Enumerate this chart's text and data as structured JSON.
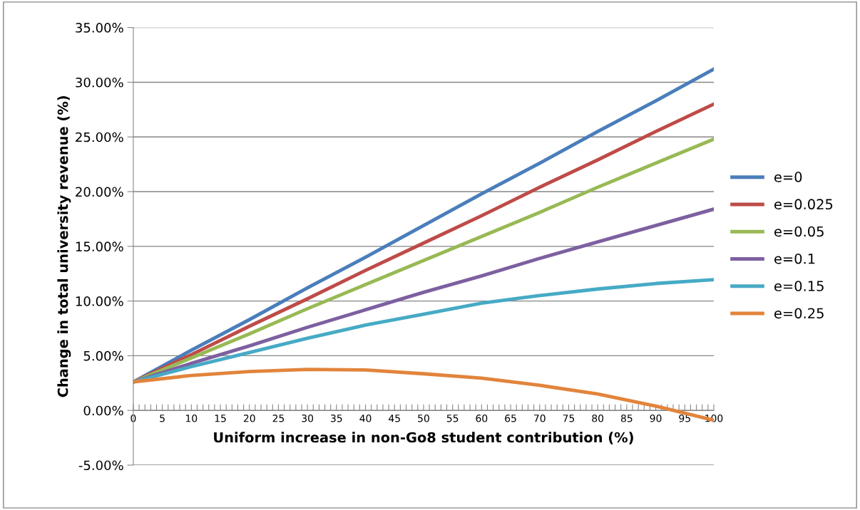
{
  "chart_data": {
    "type": "line",
    "xlabel": "Uniform increase in non-Go8 student contribution (%)",
    "ylabel": "Change in total university revenue (%)",
    "x": [
      0,
      10,
      20,
      30,
      40,
      50,
      60,
      70,
      80,
      90,
      100
    ],
    "xlim": [
      0,
      100
    ],
    "xticks": [
      0,
      {
        "value": 1,
        "label": null
      },
      {
        "value": 2,
        "label": null
      },
      {
        "value": 3,
        "label": null
      },
      {
        "value": 4,
        "label": null
      },
      5,
      {
        "value": 6,
        "label": null
      },
      {
        "value": 7,
        "label": null
      },
      {
        "value": 8,
        "label": null
      },
      {
        "value": 9,
        "label": null
      },
      10,
      {
        "value": 11,
        "label": null
      },
      {
        "value": 12,
        "label": null
      },
      {
        "value": 13,
        "label": null
      },
      {
        "value": 14,
        "label": null
      },
      15,
      {
        "value": 16,
        "label": null
      },
      {
        "value": 17,
        "label": null
      },
      {
        "value": 18,
        "label": null
      },
      {
        "value": 19,
        "label": null
      },
      20,
      {
        "value": 21,
        "label": null
      },
      {
        "value": 22,
        "label": null
      },
      {
        "value": 23,
        "label": null
      },
      {
        "value": 24,
        "label": null
      },
      25,
      {
        "value": 26,
        "label": null
      },
      {
        "value": 27,
        "label": null
      },
      {
        "value": 28,
        "label": null
      },
      {
        "value": 29,
        "label": null
      },
      30,
      {
        "value": 31,
        "label": null
      },
      {
        "value": 32,
        "label": null
      },
      {
        "value": 33,
        "label": null
      },
      {
        "value": 34,
        "label": null
      },
      35,
      {
        "value": 36,
        "label": null
      },
      {
        "value": 37,
        "label": null
      },
      {
        "value": 38,
        "label": null
      },
      {
        "value": 39,
        "label": null
      },
      40,
      {
        "value": 41,
        "label": null
      },
      {
        "value": 42,
        "label": null
      },
      {
        "value": 43,
        "label": null
      },
      {
        "value": 44,
        "label": null
      },
      45,
      {
        "value": 46,
        "label": null
      },
      {
        "value": 47,
        "label": null
      },
      {
        "value": 48,
        "label": null
      },
      {
        "value": 49,
        "label": null
      },
      50,
      {
        "value": 51,
        "label": null
      },
      {
        "value": 52,
        "label": null
      },
      {
        "value": 53,
        "label": null
      },
      {
        "value": 54,
        "label": null
      },
      55,
      {
        "value": 56,
        "label": null
      },
      {
        "value": 57,
        "label": null
      },
      {
        "value": 58,
        "label": null
      },
      {
        "value": 59,
        "label": null
      },
      60,
      {
        "value": 61,
        "label": null
      },
      {
        "value": 62,
        "label": null
      },
      {
        "value": 63,
        "label": null
      },
      {
        "value": 64,
        "label": null
      },
      65,
      {
        "value": 66,
        "label": null
      },
      {
        "value": 67,
        "label": null
      },
      {
        "value": 68,
        "label": null
      },
      {
        "value": 69,
        "label": null
      },
      70,
      {
        "value": 71,
        "label": null
      },
      {
        "value": 72,
        "label": null
      },
      {
        "value": 73,
        "label": null
      },
      {
        "value": 74,
        "label": null
      },
      75,
      {
        "value": 76,
        "label": null
      },
      {
        "value": 77,
        "label": null
      },
      {
        "value": 78,
        "label": null
      },
      {
        "value": 79,
        "label": null
      },
      80,
      {
        "value": 81,
        "label": null
      },
      {
        "value": 82,
        "label": null
      },
      {
        "value": 83,
        "label": null
      },
      {
        "value": 84,
        "label": null
      },
      85,
      {
        "value": 86,
        "label": null
      },
      {
        "value": 87,
        "label": null
      },
      {
        "value": 88,
        "label": null
      },
      {
        "value": 89,
        "label": null
      },
      90,
      {
        "value": 91,
        "label": null
      },
      {
        "value": 92,
        "label": null
      },
      {
        "value": 93,
        "label": null
      },
      {
        "value": 94,
        "label": null
      },
      95,
      {
        "value": 96,
        "label": null
      },
      {
        "value": 97,
        "label": null
      },
      {
        "value": 98,
        "label": null
      },
      {
        "value": 99,
        "label": null
      },
      100
    ],
    "ylim": [
      -5,
      35
    ],
    "yticks": [
      {
        "value": -5,
        "label": "-5.00%"
      },
      {
        "value": 0,
        "label": "0.00%"
      },
      {
        "value": 5,
        "label": "5.00%"
      },
      {
        "value": 10,
        "label": "10.00%"
      },
      {
        "value": 15,
        "label": "15.00%"
      },
      {
        "value": 20,
        "label": "20.00%"
      },
      {
        "value": 25,
        "label": "25.00%"
      },
      {
        "value": 30,
        "label": "30.00%"
      },
      {
        "value": 35,
        "label": "35.00%"
      }
    ],
    "grid": "y",
    "legend": "right",
    "marker": "none",
    "line_style": "solid",
    "series": [
      {
        "name": "e=0",
        "color": "#4a7ebb",
        "values": [
          2.6,
          5.5,
          8.3,
          11.2,
          14.0,
          16.9,
          19.8,
          22.6,
          25.5,
          28.3,
          31.2
        ]
      },
      {
        "name": "e=0.025",
        "color": "#be4b48",
        "values": [
          2.6,
          5.1,
          7.7,
          10.2,
          12.8,
          15.3,
          17.8,
          20.4,
          22.9,
          25.5,
          28.0
        ]
      },
      {
        "name": "e=0.05",
        "color": "#98b954",
        "values": [
          2.6,
          4.8,
          7.0,
          9.3,
          11.5,
          13.7,
          15.9,
          18.1,
          20.4,
          22.6,
          24.8
        ]
      },
      {
        "name": "e=0.1",
        "color": "#7d60a0",
        "values": [
          2.6,
          4.3,
          5.9,
          7.6,
          9.2,
          10.8,
          12.3,
          13.9,
          15.4,
          16.9,
          18.4
        ]
      },
      {
        "name": "e=0.15",
        "color": "#46aac5",
        "values": [
          2.6,
          4.0,
          5.3,
          6.6,
          7.8,
          8.8,
          9.8,
          10.5,
          11.1,
          11.6,
          11.95
        ]
      },
      {
        "name": "e=0.25",
        "color": "#e2843c",
        "values": [
          2.6,
          3.2,
          3.55,
          3.75,
          3.7,
          3.35,
          2.95,
          2.3,
          1.5,
          0.4,
          -0.9
        ]
      }
    ]
  }
}
